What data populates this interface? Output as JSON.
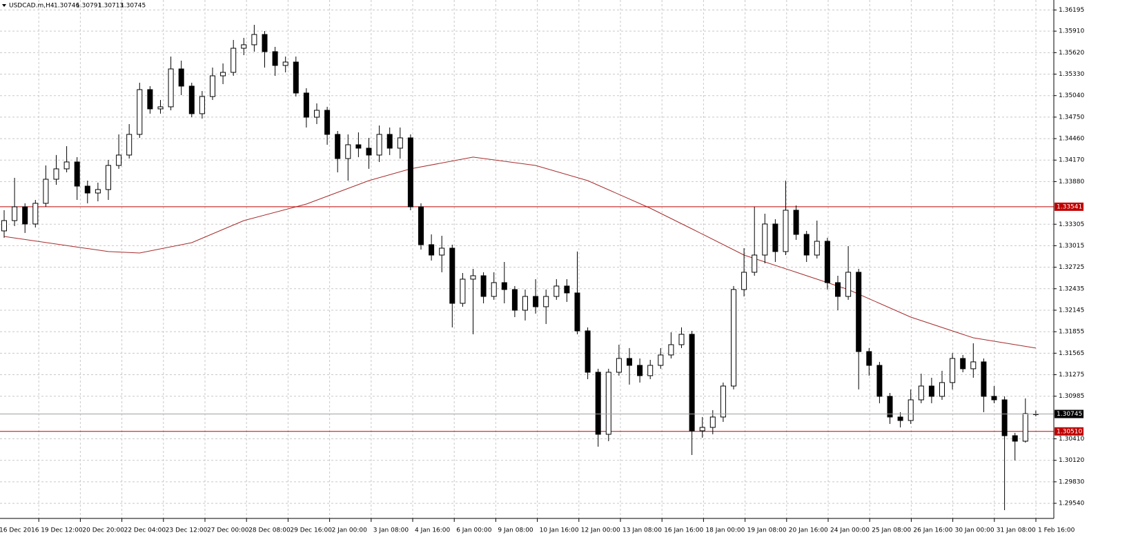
{
  "chart_data": {
    "type": "candlestick",
    "title": "USDCAD.m,H4",
    "bull_color": "#ffffff",
    "bear_color": "#000000",
    "grid": true,
    "grid_color": "#c8c8c8",
    "ylim": [
      1.29336,
      1.3633
    ],
    "yticks": [
      1.36195,
      {
        "value": 1.3591,
        "label": "1.35910"
      },
      {
        "value": 1.3562,
        "label": "1.35620"
      },
      {
        "value": 1.3533,
        "label": "1.35330"
      },
      {
        "value": 1.3504,
        "label": "1.35040"
      },
      {
        "value": 1.3475,
        "label": "1.34750"
      },
      {
        "value": 1.3446,
        "label": "1.34460"
      },
      {
        "value": 1.3417,
        "label": "1.34170"
      },
      {
        "value": 1.3388,
        "label": "1.33880"
      },
      1.33305,
      1.33015,
      1.32725,
      1.32435,
      1.32145,
      1.31855,
      1.31565,
      1.31275,
      1.30985,
      {
        "value": 1.3041,
        "label": "1.30410"
      },
      {
        "value": 1.3012,
        "label": "1.30120"
      },
      {
        "value": 1.2983,
        "label": "1.29830"
      },
      {
        "value": 1.2954,
        "label": "1.29540"
      }
    ],
    "time_labels": [
      "16 Dec 2016",
      "19 Dec 12:00",
      "20 Dec 20:00",
      "22 Dec 04:00",
      "23 Dec 12:00",
      "27 Dec 00:00",
      "28 Dec 08:00",
      "29 Dec 16:00",
      "2 Jan 00:00",
      "3 Jan 08:00",
      "4 Jan 16:00",
      "6 Jan 00:00",
      "9 Jan 08:00",
      "10 Jan 16:00",
      "12 Jan 00:00",
      "13 Jan 08:00",
      "16 Jan 16:00",
      "18 Jan 00:00",
      "19 Jan 08:00",
      "20 Jan 16:00",
      "24 Jan 00:00",
      "25 Jan 08:00",
      "26 Jan 16:00",
      "30 Jan 00:00",
      "31 Jan 08:00",
      "1 Feb 16:00"
    ],
    "levels": [
      1.33541,
      {
        "value": 1.3051,
        "label": "1.30510"
      }
    ],
    "level_color": "#c00000",
    "ma": {
      "color": "#a52a2a",
      "x": [
        0,
        10,
        13,
        18,
        23,
        29,
        35,
        39,
        45,
        51,
        56,
        62,
        66,
        71,
        76,
        81,
        87,
        93,
        99
      ],
      "values": [
        1.3314,
        1.32936,
        1.32917,
        1.33056,
        1.33354,
        1.33577,
        1.33893,
        1.34052,
        1.3421,
        1.34098,
        1.33893,
        1.33521,
        1.33242,
        1.32889,
        1.32657,
        1.32424,
        1.32052,
        1.31773,
        1.31634
      ]
    },
    "candles": [
      [
        1.33215,
        1.33494,
        1.33122,
        1.33354
      ],
      [
        1.33354,
        1.33931,
        1.3328,
        1.3354
      ],
      [
        1.3354,
        1.33587,
        1.33187,
        1.33308
      ],
      [
        1.33308,
        1.33633,
        1.33261,
        1.33587
      ],
      [
        1.33587,
        1.34098,
        1.3354,
        1.33912
      ],
      [
        1.33912,
        1.34238,
        1.33838,
        1.34052
      ],
      [
        1.34052,
        1.34358,
        1.34005,
        1.34145
      ],
      [
        1.34145,
        1.3421,
        1.33633,
        1.33819
      ],
      [
        1.33819,
        1.33893,
        1.33587,
        1.33726
      ],
      [
        1.33726,
        1.33866,
        1.33614,
        1.33773
      ],
      [
        1.33773,
        1.34172,
        1.33633,
        1.34098
      ],
      [
        1.34098,
        1.34517,
        1.34052,
        1.34238
      ],
      [
        1.34238,
        1.34656,
        1.34191,
        1.34517
      ],
      [
        1.34517,
        1.35214,
        1.3447,
        1.35121
      ],
      [
        1.35121,
        1.35168,
        1.34796,
        1.34861
      ],
      [
        1.34861,
        1.34982,
        1.34796,
        1.34889
      ],
      [
        1.34889,
        1.35567,
        1.34842,
        1.354
      ],
      [
        1.354,
        1.35512,
        1.35047,
        1.35168
      ],
      [
        1.35168,
        1.35214,
        1.34749,
        1.34796
      ],
      [
        1.34796,
        1.35102,
        1.3473,
        1.35028
      ],
      [
        1.35028,
        1.35419,
        1.34982,
        1.35307
      ],
      [
        1.35307,
        1.35474,
        1.35195,
        1.35354
      ],
      [
        1.35354,
        1.35791,
        1.35307,
        1.35679
      ],
      [
        1.35679,
        1.35819,
        1.35586,
        1.35726
      ],
      [
        1.35726,
        1.35995,
        1.35633,
        1.35865
      ],
      [
        1.35865,
        1.35912,
        1.35419,
        1.35633
      ],
      [
        1.35633,
        1.35698,
        1.35307,
        1.35447
      ],
      [
        1.35447,
        1.35567,
        1.35354,
        1.35493
      ],
      [
        1.35493,
        1.35567,
        1.35028,
        1.35075
      ],
      [
        1.35075,
        1.3514,
        1.3461,
        1.34749
      ],
      [
        1.34749,
        1.34935,
        1.34656,
        1.34842
      ],
      [
        1.34842,
        1.34889,
        1.34377,
        1.34517
      ],
      [
        1.34517,
        1.34563,
        1.34005,
        1.34191
      ],
      [
        1.34191,
        1.34517,
        1.33893,
        1.34377
      ],
      [
        1.34377,
        1.34544,
        1.3421,
        1.34331
      ],
      [
        1.34331,
        1.3447,
        1.34052,
        1.34238
      ],
      [
        1.34238,
        1.34637,
        1.34145,
        1.34517
      ],
      [
        1.34517,
        1.3461,
        1.34238,
        1.34331
      ],
      [
        1.34331,
        1.3461,
        1.34191,
        1.3447
      ],
      [
        1.3447,
        1.34517,
        1.33494,
        1.3354
      ],
      [
        1.3354,
        1.33587,
        1.32963,
        1.33029
      ],
      [
        1.33029,
        1.33168,
        1.32815,
        1.32889
      ],
      [
        1.32889,
        1.33149,
        1.32657,
        1.32982
      ],
      [
        1.32982,
        1.33029,
        1.31913,
        1.32238
      ],
      [
        1.32238,
        1.32647,
        1.32192,
        1.32564
      ],
      [
        1.32564,
        1.32703,
        1.3182,
        1.3261
      ],
      [
        1.3261,
        1.32657,
        1.32238,
        1.32331
      ],
      [
        1.32331,
        1.32657,
        1.32285,
        1.32517
      ],
      [
        1.32517,
        1.32796,
        1.32238,
        1.32424
      ],
      [
        1.32424,
        1.32471,
        1.32052,
        1.32145
      ],
      [
        1.32145,
        1.32424,
        1.32006,
        1.32331
      ],
      [
        1.32331,
        1.32564,
        1.32099,
        1.32192
      ],
      [
        1.32192,
        1.32424,
        1.31959,
        1.32331
      ],
      [
        1.32331,
        1.32564,
        1.32285,
        1.32471
      ],
      [
        1.32471,
        1.32564,
        1.32257,
        1.32378
      ],
      [
        1.32378,
        1.32936,
        1.3182,
        1.31866
      ],
      [
        1.31866,
        1.31913,
        1.31215,
        1.31308
      ],
      [
        1.31308,
        1.31355,
        1.30304,
        1.30471
      ],
      [
        1.30471,
        1.31355,
        1.30378,
        1.31308
      ],
      [
        1.31308,
        1.3168,
        1.31262,
        1.31494
      ],
      [
        1.31494,
        1.31634,
        1.31141,
        1.31401
      ],
      [
        1.31401,
        1.31494,
        1.31169,
        1.31262
      ],
      [
        1.31262,
        1.31475,
        1.31215,
        1.31401
      ],
      [
        1.31401,
        1.31634,
        1.31355,
        1.31541
      ],
      [
        1.31541,
        1.31847,
        1.31494,
        1.3168
      ],
      [
        1.3168,
        1.31913,
        1.31634,
        1.3182
      ],
      [
        1.3182,
        1.31866,
        1.30192,
        1.30518
      ],
      [
        1.30518,
        1.30704,
        1.30425,
        1.30564
      ],
      [
        1.30564,
        1.30797,
        1.30471,
        1.30704
      ],
      [
        1.30704,
        1.31169,
        1.30638,
        1.31122
      ],
      [
        1.31122,
        1.32471,
        1.31076,
        1.32424
      ],
      [
        1.32424,
        1.32982,
        1.32331,
        1.32657
      ],
      [
        1.32657,
        1.3354,
        1.3261,
        1.32889
      ],
      [
        1.32889,
        1.33447,
        1.32777,
        1.33308
      ],
      [
        1.33308,
        1.33373,
        1.32796,
        1.32936
      ],
      [
        1.32936,
        1.33893,
        1.32889,
        1.33494
      ],
      [
        1.33494,
        1.33559,
        1.33094,
        1.33168
      ],
      [
        1.33168,
        1.33215,
        1.32796,
        1.32889
      ],
      [
        1.32889,
        1.33354,
        1.32843,
        1.33075
      ],
      [
        1.33075,
        1.33122,
        1.32424,
        1.32517
      ],
      [
        1.32517,
        1.3261,
        1.32145,
        1.32331
      ],
      [
        1.32331,
        1.3301,
        1.32285,
        1.32657
      ],
      [
        1.32657,
        1.32703,
        1.31076,
        1.31587
      ],
      [
        1.31587,
        1.31634,
        1.31262,
        1.31401
      ],
      [
        1.31401,
        1.31448,
        1.3089,
        1.30983
      ],
      [
        1.30983,
        1.31029,
        1.30611,
        1.30704
      ],
      [
        1.30704,
        1.30769,
        1.30564,
        1.30657
      ],
      [
        1.30657,
        1.31076,
        1.30611,
        1.30936
      ],
      [
        1.30936,
        1.31289,
        1.3089,
        1.31122
      ],
      [
        1.31122,
        1.31234,
        1.3089,
        1.30983
      ],
      [
        1.30983,
        1.31327,
        1.30936,
        1.31169
      ],
      [
        1.31169,
        1.31568,
        1.31076,
        1.31494
      ],
      [
        1.31494,
        1.31541,
        1.31308,
        1.31355
      ],
      [
        1.31355,
        1.31699,
        1.31234,
        1.31448
      ],
      [
        1.31448,
        1.31494,
        1.30769,
        1.30983
      ],
      [
        1.30983,
        1.31122,
        1.3089,
        1.30936
      ],
      [
        1.30936,
        1.30983,
        1.29448,
        1.30452
      ],
      [
        1.30452,
        1.3049,
        1.30118,
        1.30378
      ],
      [
        1.30378,
        1.30955,
        1.30359,
        1.3075
      ],
      [
        1.30746,
        1.30791,
        1.30713,
        1.30745
      ]
    ]
  }
}
